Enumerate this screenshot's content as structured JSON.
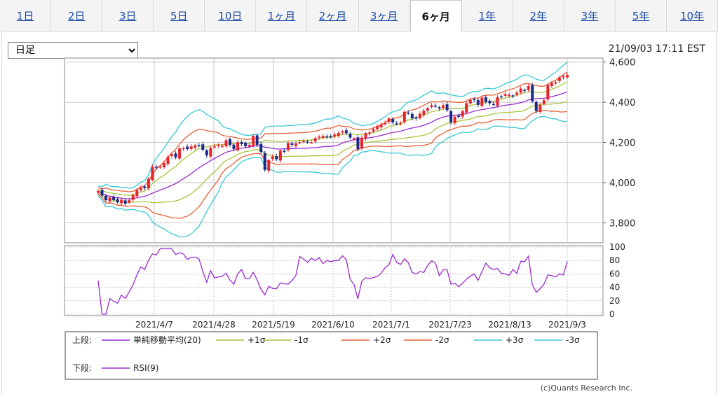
{
  "tabs": [
    {
      "label": "1日",
      "active": false
    },
    {
      "label": "2日",
      "active": false
    },
    {
      "label": "3日",
      "active": false
    },
    {
      "label": "5日",
      "active": false
    },
    {
      "label": "10日",
      "active": false
    },
    {
      "label": "1ヶ月",
      "active": false
    },
    {
      "label": "2ヶ月",
      "active": false
    },
    {
      "label": "3ヶ月",
      "active": false
    },
    {
      "label": "6ヶ月",
      "active": true
    },
    {
      "label": "1年",
      "active": false
    },
    {
      "label": "2年",
      "active": false
    },
    {
      "label": "3年",
      "active": false
    },
    {
      "label": "5年",
      "active": false
    },
    {
      "label": "10年",
      "active": false
    }
  ],
  "period_select": {
    "value": "日足"
  },
  "timestamp": "21/09/03 17:11 EST",
  "credit": "(c)Quants Research Inc.",
  "colors": {
    "up": "#e8232a",
    "down": "#1a2a88",
    "sma": "#9a2ad0",
    "s1": "#a8c43a",
    "s2": "#e8603a",
    "s3": "#38c8d8",
    "rsi": "#9a2ad0",
    "grid": "#c8c8c8"
  },
  "chart_data": [
    {
      "type": "candlestick",
      "title": "",
      "ylim": [
        3700,
        4620
      ],
      "yticks": [
        3800,
        4000,
        4200,
        4400,
        4600
      ],
      "ytick_labels": [
        "3,800",
        "4,000",
        "4,200",
        "4,400",
        "4,600"
      ],
      "xtick_labels": [
        "2021/4/7",
        "2021/4/28",
        "2021/5/19",
        "2021/6/10",
        "2021/7/1",
        "2021/7/23",
        "2021/8/13",
        "2021/9/3"
      ],
      "n_days": 122,
      "closes": [
        3958,
        3935,
        3912,
        3926,
        3913,
        3901,
        3915,
        3895,
        3912,
        3938,
        3963,
        3974,
        3972,
        4019,
        4077,
        4074,
        4080,
        4097,
        4128,
        4142,
        4125,
        4170,
        4173,
        4167,
        4180,
        4186,
        4185,
        4163,
        4135,
        4173,
        4180,
        4187,
        4183,
        4211,
        4188,
        4167,
        4201,
        4192,
        4181,
        4188,
        4232,
        4188,
        4152,
        4063,
        4112,
        4130,
        4116,
        4159,
        4155,
        4197,
        4188,
        4195,
        4201,
        4208,
        4204,
        4200,
        4221,
        4229,
        4232,
        4227,
        4229,
        4239,
        4247,
        4255,
        4246,
        4224,
        4221,
        4166,
        4224,
        4246,
        4249,
        4265,
        4281,
        4290,
        4297,
        4319,
        4300,
        4291,
        4298,
        4352,
        4345,
        4320,
        4319,
        4343,
        4358,
        4370,
        4385,
        4381,
        4369,
        4385,
        4360,
        4300,
        4328,
        4327,
        4355,
        4395,
        4411,
        4412,
        4387,
        4423,
        4402,
        4395,
        4387,
        4425,
        4429,
        4441,
        4436,
        4432,
        4448,
        4468,
        4460,
        4480,
        4405,
        4357,
        4387,
        4410,
        4486,
        4496,
        4500,
        4523,
        4530,
        4536
      ],
      "bands_label": "上段:",
      "sub_label": "下段:",
      "legend": [
        {
          "label": "単純移動平均(20)",
          "color": "sma"
        },
        {
          "label": "+1σ",
          "color": "s1"
        },
        {
          "label": "-1σ",
          "color": "s1"
        },
        {
          "label": "+2σ",
          "color": "s2"
        },
        {
          "label": "-2σ",
          "color": "s2"
        },
        {
          "label": "+3σ",
          "color": "s3"
        },
        {
          "label": "-3σ",
          "color": "s3"
        }
      ]
    },
    {
      "type": "line",
      "ylim": [
        0,
        100
      ],
      "yticks": [
        0,
        20,
        40,
        60,
        80,
        100
      ],
      "ytick_labels": [
        "0",
        "20",
        "40",
        "60",
        "80",
        "100"
      ],
      "series": [
        {
          "name": "RSI(9)",
          "color": "rsi"
        }
      ]
    }
  ]
}
